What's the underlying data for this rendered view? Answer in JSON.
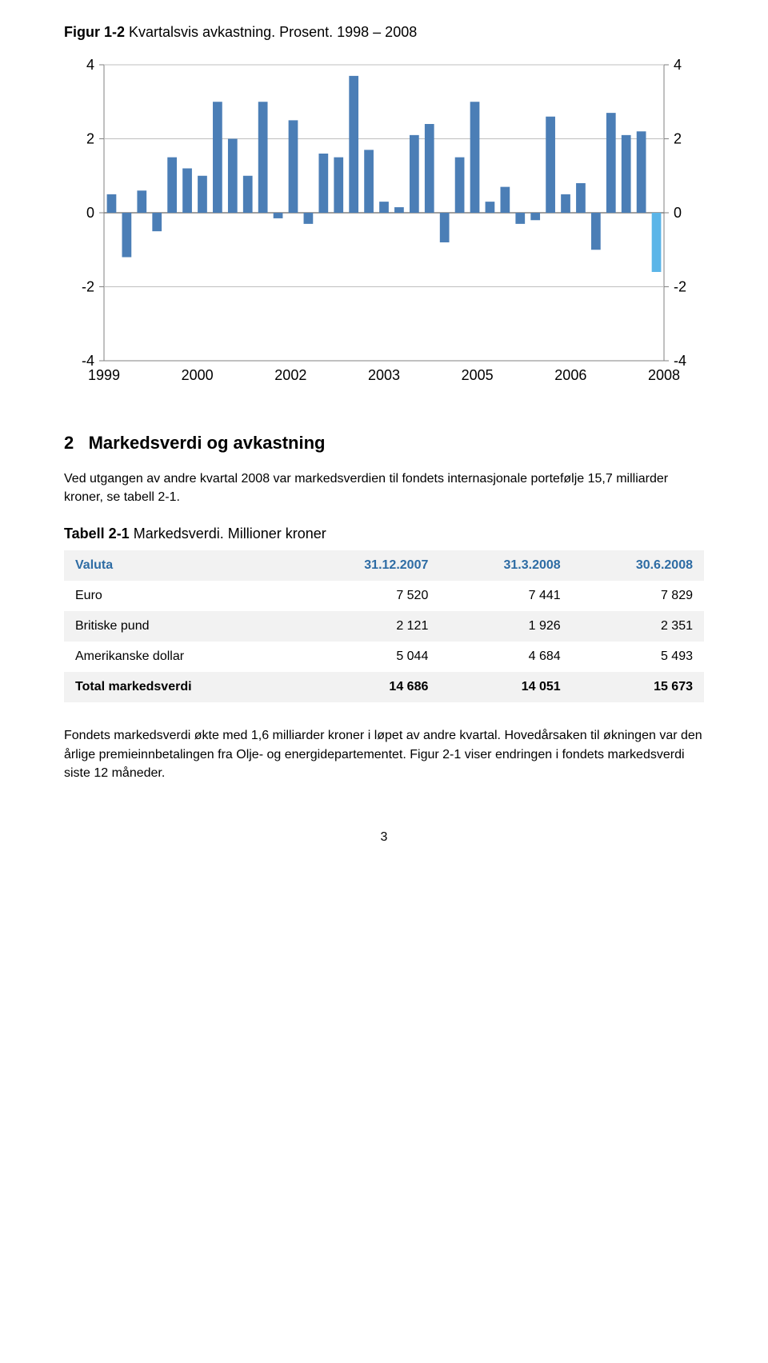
{
  "figure": {
    "title_bold": "Figur 1-2",
    "title_rest": " Kvartalsvis avkastning. Prosent. 1998 – 2008",
    "chart": {
      "type": "bar",
      "ylim": [
        -4,
        4
      ],
      "ytick_step": 2,
      "yticks_left": [
        "4",
        "2",
        "0",
        "-2",
        "-4"
      ],
      "yticks_right": [
        "4",
        "2",
        "0",
        "-2",
        "-4"
      ],
      "xticks": [
        "1999",
        "2000",
        "2002",
        "2003",
        "2005",
        "2006",
        "2008"
      ],
      "grid_color": "#bfbfbf",
      "axis_color": "#808080",
      "zero_color": "#808080",
      "background_color": "#ffffff",
      "bar_color": "#4b7eb6",
      "highlight_color": "#5bb5e8",
      "bar_width": 0.62,
      "tick_fontsize": 18,
      "xlabel_fontsize": 18,
      "values": [
        0.5,
        -1.2,
        0.6,
        -0.5,
        1.5,
        1.2,
        1.0,
        3.0,
        2.0,
        1.0,
        3.0,
        -0.15,
        2.5,
        -0.3,
        1.6,
        1.5,
        3.7,
        1.7,
        0.3,
        0.15,
        2.1,
        2.4,
        -0.8,
        1.5,
        3.0,
        0.3,
        0.7,
        -0.3,
        -0.2,
        2.6,
        0.5,
        0.8,
        -1.0,
        2.7,
        2.1,
        2.2,
        -1.6
      ],
      "highlight_index": 36
    }
  },
  "section": {
    "number": "2",
    "title": "Markedsverdi og avkastning",
    "paragraph1": "Ved utgangen av andre kvartal 2008 var markedsverdien til fondets internasjonale portefølje 15,7 milliarder kroner, se tabell 2-1."
  },
  "table": {
    "title_bold": "Tabell 2-1",
    "title_rest": " Markedsverdi. Millioner kroner",
    "header_label": "Valuta",
    "columns": [
      "31.12.2007",
      "31.3.2008",
      "30.6.2008"
    ],
    "rows": [
      {
        "label": "Euro",
        "cells": [
          "7 520",
          "7 441",
          "7 829"
        ]
      },
      {
        "label": "Britiske pund",
        "cells": [
          "2 121",
          "1 926",
          "2 351"
        ]
      },
      {
        "label": "Amerikanske dollar",
        "cells": [
          "5 044",
          "4 684",
          "5 493"
        ]
      },
      {
        "label": "Total markedsverdi",
        "cells": [
          "14 686",
          "14 051",
          "15 673"
        ],
        "total": true
      }
    ]
  },
  "paragraph2": "Fondets markedsverdi økte med 1,6 milliarder kroner i løpet av andre kvartal. Hovedårsaken til økningen var den årlige premieinnbetalingen fra Olje- og energidepartementet. Figur 2-1 viser endringen i fondets markedsverdi siste 12 måneder.",
  "page_number": "3"
}
